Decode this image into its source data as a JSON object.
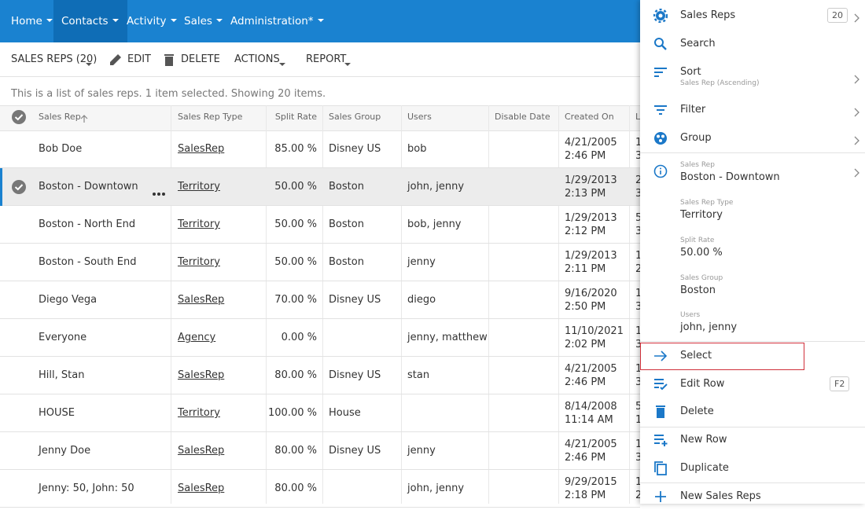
{
  "nav": {
    "items": [
      {
        "label": "Home",
        "active": false
      },
      {
        "label": "Contacts",
        "active": true
      },
      {
        "label": "Activity",
        "active": false
      },
      {
        "label": "Sales",
        "active": false
      },
      {
        "label": "Administration*",
        "active": false
      }
    ]
  },
  "toolbar": {
    "title": "SALES REPS (20)",
    "edit": "EDIT",
    "delete": "DELETE",
    "actions": "ACTIONS",
    "report": "REPORT"
  },
  "status": "This is a list of sales reps. 1 item selected. Showing 20 items.",
  "table": {
    "columns": [
      "Sales Rep",
      "Sales Rep Type",
      "Split Rate",
      "Sales Group",
      "Users",
      "Disable Date",
      "Created On",
      "L"
    ],
    "rows": [
      {
        "name": "Bob Doe",
        "type": "SalesRep",
        "split": "85.00 %",
        "group": "Disney US",
        "users": "bob",
        "date": "4/21/2005",
        "time": "2:46 PM",
        "cut": [
          "1",
          "3"
        ],
        "selected": false
      },
      {
        "name": "Boston - Downtown",
        "type": "Territory",
        "split": "50.00 %",
        "group": "Boston",
        "users": "john, jenny",
        "date": "1/29/2013",
        "time": "2:13 PM",
        "cut": [
          "2",
          "3"
        ],
        "selected": true
      },
      {
        "name": "Boston - North End",
        "type": "Territory",
        "split": "50.00 %",
        "group": "Boston",
        "users": "bob, jenny",
        "date": "1/29/2013",
        "time": "2:12 PM",
        "cut": [
          "5",
          "3"
        ],
        "selected": false
      },
      {
        "name": "Boston - South End",
        "type": "Territory",
        "split": "50.00 %",
        "group": "Boston",
        "users": "jenny",
        "date": "1/29/2013",
        "time": "2:11 PM",
        "cut": [
          "1",
          "2"
        ],
        "selected": false
      },
      {
        "name": "Diego Vega",
        "type": "SalesRep",
        "split": "70.00 %",
        "group": "Disney US",
        "users": "diego",
        "date": "9/16/2020",
        "time": "2:50 PM",
        "cut": [
          "1",
          "3"
        ],
        "selected": false
      },
      {
        "name": "Everyone",
        "type": "Agency",
        "split": "0.00 %",
        "group": "",
        "users": "jenny, matthew",
        "date": "11/10/2021",
        "time": "2:02 PM",
        "cut": [
          "1",
          "3"
        ],
        "selected": false
      },
      {
        "name": "Hill, Stan",
        "type": "SalesRep",
        "split": "80.00 %",
        "group": "Disney US",
        "users": "stan",
        "date": "4/21/2005",
        "time": "2:46 PM",
        "cut": [
          "1",
          "3"
        ],
        "selected": false
      },
      {
        "name": "HOUSE",
        "type": "Territory",
        "split": "100.00 %",
        "group": "House",
        "users": "",
        "date": "8/14/2008",
        "time": "11:14 AM",
        "cut": [
          "5",
          "1"
        ],
        "selected": false
      },
      {
        "name": "Jenny Doe",
        "type": "SalesRep",
        "split": "80.00 %",
        "group": "Disney US",
        "users": "jenny",
        "date": "4/21/2005",
        "time": "2:46 PM",
        "cut": [
          "1",
          "3"
        ],
        "selected": false
      },
      {
        "name": "Jenny: 50, John: 50",
        "type": "SalesRep",
        "split": "80.00 %",
        "group": "",
        "users": "john, jenny",
        "date": "9/29/2015",
        "time": "2:18 PM",
        "cut": [
          "1",
          "2"
        ],
        "selected": false
      }
    ]
  },
  "panel": {
    "menu": [
      {
        "label": "Sales Reps",
        "badge": "20",
        "chevron": true
      },
      {
        "label": "Search",
        "chevron": false
      },
      {
        "label": "Sort",
        "sub": "Sales Rep (Ascending)",
        "chevron": true
      },
      {
        "label": "Filter",
        "chevron": true
      },
      {
        "label": "Group",
        "chevron": true
      }
    ],
    "details": [
      {
        "caption": "Sales Rep",
        "value": "Boston - Downtown",
        "chevron": true
      },
      {
        "caption": "Sales Rep Type",
        "value": "Territory",
        "chevron": false
      },
      {
        "caption": "Split Rate",
        "value": "50.00 %",
        "chevron": false
      },
      {
        "caption": "Sales Group",
        "value": "Boston",
        "chevron": false
      },
      {
        "caption": "Users",
        "value": "john, jenny",
        "chevron": false
      }
    ],
    "actions": [
      {
        "label": "Select",
        "highlighted": true
      },
      {
        "label": "Edit Row",
        "shortcut": "F2"
      },
      {
        "label": "Delete"
      }
    ],
    "more": [
      {
        "label": "New Row"
      },
      {
        "label": "Duplicate"
      },
      {
        "label": "New Sales Reps"
      }
    ]
  }
}
